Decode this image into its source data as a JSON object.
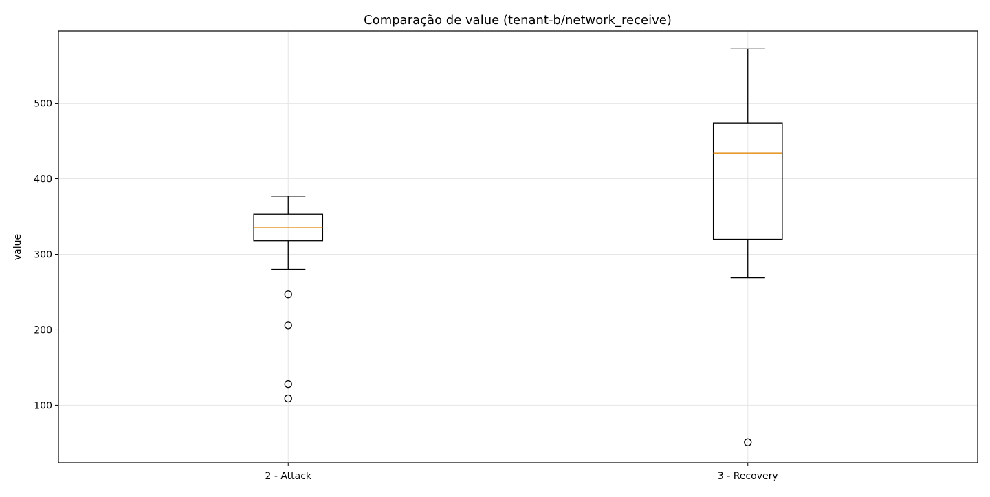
{
  "chart_data": {
    "type": "box",
    "title": "Comparação de value (tenant-b/network_receive)",
    "xlabel": "",
    "ylabel": "value",
    "ylim": [
      24,
      596
    ],
    "yticks": [
      100,
      200,
      300,
      400,
      500
    ],
    "grid": true,
    "colors": {
      "box": "#000000",
      "median": "#e69a2e",
      "grid": "#e6e6e6"
    },
    "categories": [
      "2 - Attack",
      "3 - Recovery"
    ],
    "boxes": [
      {
        "name": "2 - Attack",
        "whisker_low": 280,
        "q1": 318,
        "median": 336,
        "q3": 353,
        "whisker_high": 377,
        "outliers": [
          247,
          206,
          128,
          109
        ]
      },
      {
        "name": "3 - Recovery",
        "whisker_low": 269,
        "q1": 320,
        "median": 434,
        "q3": 474,
        "whisker_high": 572,
        "outliers": [
          51
        ]
      }
    ]
  }
}
